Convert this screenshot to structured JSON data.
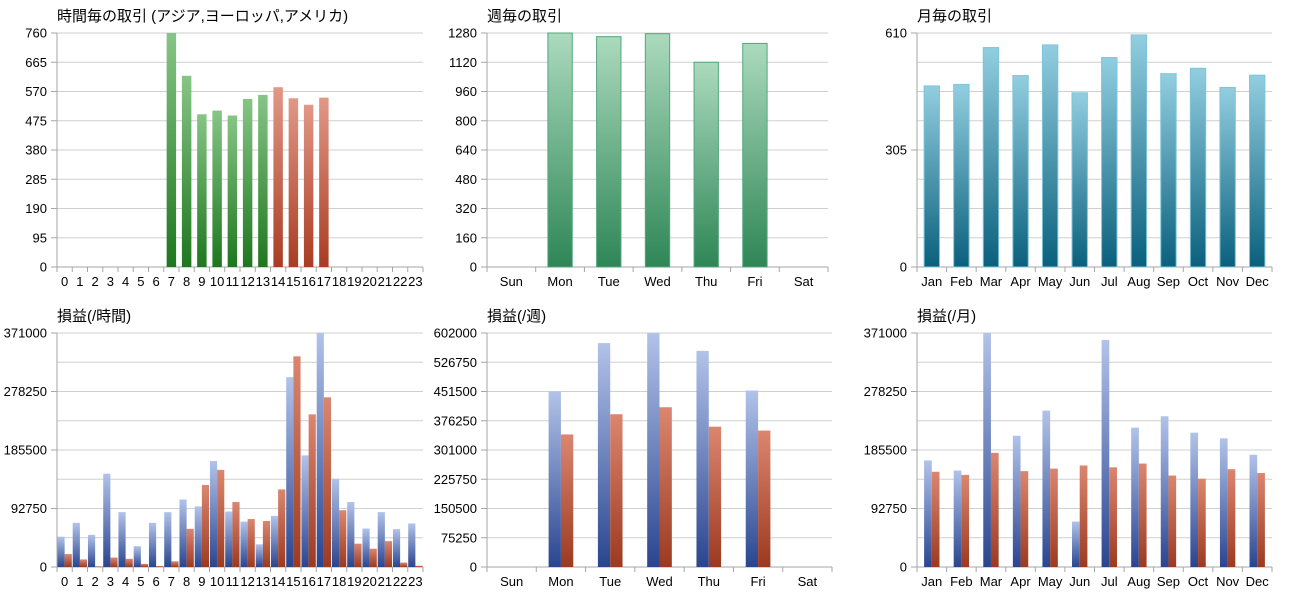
{
  "page": {
    "background": "#ffffff"
  },
  "colors": {
    "grid": "#cfcfcf",
    "axis": "#a6a6a6",
    "text": "#000000",
    "palettes": {
      "green_solid": {
        "top": "#86C586",
        "bottom": "#1E771E"
      },
      "red_solid": {
        "top": "#E29887",
        "bottom": "#A93C22"
      },
      "green_soft": {
        "top": "#ABDABD",
        "bottom": "#2E8656",
        "stroke": "#55A57D"
      },
      "teal": {
        "top": "#92CEE0",
        "bottom": "#0A607C",
        "stroke": "#7CC5D9"
      },
      "blue": {
        "top": "#B2C3E9",
        "bottom": "#2A4590"
      },
      "red": {
        "top": "#DB8670",
        "bottom": "#9C3A20"
      }
    }
  },
  "chart_data": [
    {
      "id": "hourly-trades",
      "type": "bar",
      "title": "時間毎の取引 (アジア,ヨーロッパ,アメリカ)",
      "categories": [
        "0",
        "1",
        "2",
        "3",
        "4",
        "5",
        "6",
        "7",
        "8",
        "9",
        "10",
        "11",
        "12",
        "13",
        "14",
        "15",
        "16",
        "17",
        "18",
        "19",
        "20",
        "21",
        "22",
        "23"
      ],
      "series": [
        {
          "palette": "green_solid",
          "values": [
            0,
            0,
            0,
            0,
            0,
            0,
            0,
            760,
            621,
            496,
            508,
            492,
            546,
            559,
            584,
            548,
            527,
            550,
            0,
            0,
            0,
            0,
            0,
            0
          ]
        }
      ],
      "bar_palettes": [
        "green_solid",
        "green_solid",
        "green_solid",
        "green_solid",
        "green_solid",
        "green_solid",
        "green_solid",
        "green_solid",
        "green_solid",
        "green_solid",
        "green_solid",
        "green_solid",
        "green_solid",
        "green_solid",
        "red_solid",
        "red_solid",
        "red_solid",
        "red_solid",
        "red_solid",
        "red_solid",
        "red_solid",
        "red_solid",
        "red_solid",
        "red_solid"
      ],
      "ylim": [
        0,
        760
      ],
      "grid_divisions": 8,
      "grid_on": true,
      "legend": "none",
      "y_ticks": [
        {
          "value": 0,
          "label": "0"
        },
        {
          "value": 95,
          "label": "95"
        },
        {
          "value": 190,
          "label": "190"
        },
        {
          "value": 285,
          "label": "285"
        },
        {
          "value": 380,
          "label": "380"
        },
        {
          "value": 475,
          "label": "475"
        },
        {
          "value": 570,
          "label": "570"
        },
        {
          "value": 665,
          "label": "665"
        },
        {
          "value": 760,
          "label": "760"
        }
      ]
    },
    {
      "id": "weekly-trades",
      "type": "bar",
      "title": "週毎の取引",
      "categories": [
        "Sun",
        "Mon",
        "Tue",
        "Wed",
        "Thu",
        "Fri",
        "Sat"
      ],
      "series": [
        {
          "palette": "green_soft",
          "values": [
            0,
            1280,
            1260,
            1276,
            1120,
            1223,
            0
          ]
        }
      ],
      "ylim": [
        0,
        1280
      ],
      "grid_divisions": 8,
      "grid_on": true,
      "legend": "none",
      "y_ticks": [
        {
          "value": 0,
          "label": "0"
        },
        {
          "value": 160,
          "label": "160"
        },
        {
          "value": 320,
          "label": "320"
        },
        {
          "value": 480,
          "label": "480"
        },
        {
          "value": 640,
          "label": "640"
        },
        {
          "value": 800,
          "label": "800"
        },
        {
          "value": 960,
          "label": "960"
        },
        {
          "value": 1120,
          "label": "1120"
        },
        {
          "value": 1280,
          "label": "1280"
        }
      ]
    },
    {
      "id": "monthly-trades",
      "type": "bar",
      "title": "月毎の取引",
      "categories": [
        "Jan",
        "Feb",
        "Mar",
        "Apr",
        "May",
        "Jun",
        "Jul",
        "Aug",
        "Sep",
        "Oct",
        "Nov",
        "Dec"
      ],
      "series": [
        {
          "palette": "teal",
          "values": [
            472,
            476,
            572,
            499,
            579,
            454,
            546,
            605,
            504,
            518,
            468,
            500
          ]
        }
      ],
      "ylim": [
        0,
        610
      ],
      "grid_divisions": 8,
      "grid_on": true,
      "legend": "none",
      "y_ticks": [
        {
          "value": 0,
          "label": "0"
        },
        {
          "value": 305,
          "label": "305"
        },
        {
          "value": 610,
          "label": "610"
        }
      ]
    },
    {
      "id": "hourly-pnl",
      "type": "bar",
      "title": "損益(/時間)",
      "categories": [
        "0",
        "1",
        "2",
        "3",
        "4",
        "5",
        "6",
        "7",
        "8",
        "9",
        "10",
        "11",
        "12",
        "13",
        "14",
        "15",
        "16",
        "17",
        "18",
        "19",
        "20",
        "21",
        "22",
        "23"
      ],
      "series": [
        {
          "palette": "blue",
          "values": [
            48000,
            70000,
            51000,
            148000,
            87000,
            33000,
            70000,
            87000,
            107000,
            96000,
            168000,
            88000,
            72000,
            36000,
            81000,
            301000,
            177000,
            371000,
            140000,
            103000,
            61000,
            87000,
            60000,
            69000
          ]
        },
        {
          "palette": "red",
          "values": [
            20500,
            12000,
            1000,
            15000,
            13000,
            5000,
            1500,
            9000,
            60500,
            130000,
            154000,
            103000,
            76000,
            73000,
            123000,
            334000,
            242000,
            269000,
            90000,
            37000,
            29000,
            41000,
            7000,
            2000
          ]
        }
      ],
      "ylim": [
        0,
        371000
      ],
      "grid_divisions": 8,
      "grid_on": true,
      "legend": "none",
      "y_ticks": [
        {
          "value": 0,
          "label": "0"
        },
        {
          "value": 92750,
          "label": "92750"
        },
        {
          "value": 185500,
          "label": "185500"
        },
        {
          "value": 278250,
          "label": "278250"
        },
        {
          "value": 371000,
          "label": "371000"
        }
      ]
    },
    {
      "id": "weekly-pnl",
      "type": "bar",
      "title": "損益(/週)",
      "categories": [
        "Sun",
        "Mon",
        "Tue",
        "Wed",
        "Thu",
        "Fri",
        "Sat"
      ],
      "series": [
        {
          "palette": "blue",
          "values": [
            0,
            451500,
            576000,
            602000,
            556000,
            454000,
            0
          ]
        },
        {
          "palette": "red",
          "values": [
            0,
            341000,
            393000,
            411000,
            361000,
            351000,
            0
          ]
        }
      ],
      "ylim": [
        0,
        602000
      ],
      "grid_divisions": 8,
      "grid_on": true,
      "legend": "none",
      "y_ticks": [
        {
          "value": 0,
          "label": "0"
        },
        {
          "value": 75250,
          "label": "75250"
        },
        {
          "value": 150500,
          "label": "150500"
        },
        {
          "value": 225750,
          "label": "225750"
        },
        {
          "value": 301000,
          "label": "301000"
        },
        {
          "value": 376250,
          "label": "376250"
        },
        {
          "value": 451500,
          "label": "451500"
        },
        {
          "value": 526750,
          "label": "526750"
        },
        {
          "value": 602000,
          "label": "602000"
        }
      ]
    },
    {
      "id": "monthly-pnl",
      "type": "bar",
      "title": "損益(/月)",
      "categories": [
        "Jan",
        "Feb",
        "Mar",
        "Apr",
        "May",
        "Jun",
        "Jul",
        "Aug",
        "Sep",
        "Oct",
        "Nov",
        "Dec"
      ],
      "series": [
        {
          "palette": "blue",
          "values": [
            169000,
            153000,
            371000,
            208000,
            248000,
            72000,
            360000,
            221000,
            239000,
            213000,
            204000,
            178000
          ]
        },
        {
          "palette": "red",
          "values": [
            151000,
            146000,
            181000,
            152000,
            156000,
            161000,
            158000,
            164000,
            145000,
            140000,
            155000,
            149000
          ]
        }
      ],
      "ylim": [
        0,
        371000
      ],
      "grid_divisions": 8,
      "grid_on": true,
      "legend": "none",
      "y_ticks": [
        {
          "value": 0,
          "label": "0"
        },
        {
          "value": 92750,
          "label": "92750"
        },
        {
          "value": 185500,
          "label": "185500"
        },
        {
          "value": 278250,
          "label": "278250"
        },
        {
          "value": 371000,
          "label": "371000"
        }
      ]
    }
  ]
}
